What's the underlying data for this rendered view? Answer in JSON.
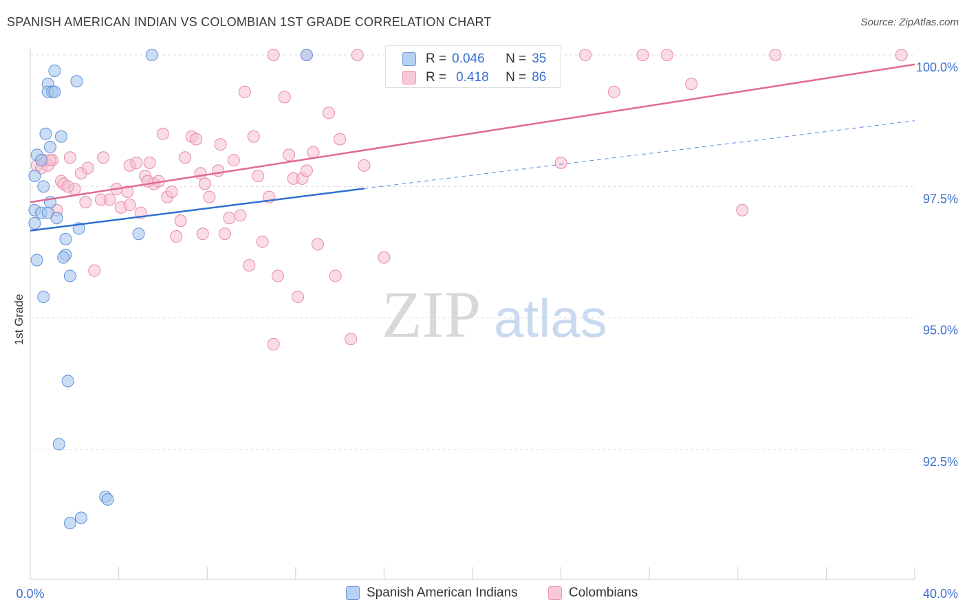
{
  "title": "SPANISH AMERICAN INDIAN VS COLOMBIAN 1ST GRADE CORRELATION CHART",
  "source": "Source: ZipAtlas.com",
  "watermark": {
    "zip": "ZIP",
    "atlas": "atlas"
  },
  "legend_top": {
    "rows": [
      {
        "r_label": "R =",
        "r_value": "0.046",
        "n_label": "N =",
        "n_value": "35"
      },
      {
        "r_label": "R =",
        "r_value": "0.418",
        "n_label": "N =",
        "n_value": "86"
      }
    ]
  },
  "colors": {
    "blue_fill": "#a9c6ef",
    "blue_stroke": "#5b8fd8",
    "blue_line": "#2f6fd3",
    "pink_fill": "#f6bfd0",
    "pink_stroke": "#e889a8",
    "pink_line": "#e06a93",
    "tick_label": "#3a6fcf",
    "grid": "#dcdcdc"
  },
  "chart_data": {
    "type": "scatter",
    "title": "SPANISH AMERICAN INDIAN VS COLOMBIAN 1ST GRADE CORRELATION CHART",
    "xlabel": "",
    "ylabel": "1st Grade",
    "xlim": [
      0,
      40
    ],
    "ylim": [
      90.0,
      100.3
    ],
    "x_tick_labels": [
      "0.0%",
      "40.0%"
    ],
    "y_ticks": [
      92.5,
      95.0,
      97.5,
      100.0
    ],
    "y_tick_labels": [
      "92.5%",
      "95.0%",
      "97.5%",
      "100.0%"
    ],
    "grid": true,
    "legend_position": "bottom",
    "series": [
      {
        "name": "Spanish American Indians",
        "color": "#a9c6ef",
        "R": 0.046,
        "N": 35,
        "trend": {
          "x": [
            0,
            15.1
          ],
          "y": [
            96.66,
            97.46
          ],
          "dashed_to_x": 40,
          "dashed_end_y": 98.75
        },
        "points": [
          [
            0.2,
            97.05
          ],
          [
            0.2,
            97.7
          ],
          [
            0.2,
            96.8
          ],
          [
            0.3,
            98.1
          ],
          [
            0.3,
            96.1
          ],
          [
            0.5,
            98.0
          ],
          [
            0.5,
            97.0
          ],
          [
            0.6,
            97.5
          ],
          [
            0.6,
            95.4
          ],
          [
            0.7,
            98.5
          ],
          [
            0.8,
            97.0
          ],
          [
            0.8,
            99.45
          ],
          [
            0.8,
            99.3
          ],
          [
            0.9,
            98.25
          ],
          [
            0.9,
            97.2
          ],
          [
            1.0,
            99.3
          ],
          [
            1.1,
            99.7
          ],
          [
            1.1,
            99.3
          ],
          [
            1.2,
            96.9
          ],
          [
            1.4,
            98.45
          ],
          [
            1.6,
            96.5
          ],
          [
            1.6,
            96.2
          ],
          [
            1.7,
            93.8
          ],
          [
            1.8,
            95.8
          ],
          [
            1.8,
            91.1
          ],
          [
            2.1,
            99.5
          ],
          [
            2.2,
            96.7
          ],
          [
            2.3,
            91.2
          ],
          [
            1.3,
            92.6
          ],
          [
            3.4,
            91.6
          ],
          [
            3.5,
            91.55
          ],
          [
            4.9,
            96.6
          ],
          [
            5.5,
            100.0
          ],
          [
            12.5,
            100.0
          ],
          [
            1.5,
            96.15
          ]
        ]
      },
      {
        "name": "Colombians",
        "color": "#f6bfd0",
        "R": 0.418,
        "N": 86,
        "trend": {
          "x": [
            0,
            40
          ],
          "y": [
            97.2,
            99.82
          ]
        },
        "points": [
          [
            0.3,
            97.9
          ],
          [
            0.5,
            97.85
          ],
          [
            0.6,
            98.0
          ],
          [
            0.8,
            97.9
          ],
          [
            1.0,
            98.0
          ],
          [
            1.2,
            97.05
          ],
          [
            1.4,
            97.6
          ],
          [
            1.5,
            97.55
          ],
          [
            1.8,
            98.05
          ],
          [
            2.0,
            97.45
          ],
          [
            2.3,
            97.75
          ],
          [
            2.5,
            97.2
          ],
          [
            2.6,
            97.85
          ],
          [
            2.9,
            95.9
          ],
          [
            3.2,
            97.25
          ],
          [
            3.3,
            98.05
          ],
          [
            3.6,
            97.25
          ],
          [
            3.9,
            97.45
          ],
          [
            4.1,
            97.1
          ],
          [
            4.4,
            97.4
          ],
          [
            4.5,
            97.15
          ],
          [
            4.5,
            97.9
          ],
          [
            4.8,
            97.95
          ],
          [
            5.0,
            97.0
          ],
          [
            5.2,
            97.7
          ],
          [
            5.4,
            97.95
          ],
          [
            5.6,
            97.55
          ],
          [
            5.8,
            97.6
          ],
          [
            6.0,
            98.5
          ],
          [
            6.2,
            97.3
          ],
          [
            6.4,
            97.4
          ],
          [
            6.6,
            96.55
          ],
          [
            6.8,
            96.85
          ],
          [
            7.0,
            98.05
          ],
          [
            7.3,
            98.45
          ],
          [
            7.5,
            98.4
          ],
          [
            7.7,
            97.75
          ],
          [
            7.8,
            96.6
          ],
          [
            7.9,
            97.55
          ],
          [
            8.1,
            97.3
          ],
          [
            8.5,
            97.8
          ],
          [
            8.6,
            98.3
          ],
          [
            8.8,
            96.6
          ],
          [
            9.0,
            96.9
          ],
          [
            9.2,
            98.0
          ],
          [
            9.5,
            96.95
          ],
          [
            9.7,
            99.3
          ],
          [
            9.9,
            96.0
          ],
          [
            10.1,
            98.45
          ],
          [
            10.3,
            97.7
          ],
          [
            10.5,
            96.45
          ],
          [
            10.8,
            97.3
          ],
          [
            11.0,
            94.5
          ],
          [
            11.2,
            95.8
          ],
          [
            11.5,
            99.2
          ],
          [
            11.7,
            98.1
          ],
          [
            11.9,
            97.65
          ],
          [
            12.1,
            95.4
          ],
          [
            12.3,
            97.65
          ],
          [
            12.5,
            97.8
          ],
          [
            12.8,
            98.15
          ],
          [
            13.0,
            96.4
          ],
          [
            13.5,
            98.9
          ],
          [
            13.8,
            95.8
          ],
          [
            14.0,
            98.4
          ],
          [
            14.5,
            94.6
          ],
          [
            15.1,
            97.9
          ],
          [
            16.0,
            96.15
          ],
          [
            17.0,
            100.0
          ],
          [
            18.0,
            100.0
          ],
          [
            11.0,
            100.0
          ],
          [
            12.5,
            100.0
          ],
          [
            14.8,
            100.0
          ],
          [
            20.0,
            100.0
          ],
          [
            24.0,
            97.95
          ],
          [
            25.1,
            100.0
          ],
          [
            26.4,
            99.3
          ],
          [
            27.7,
            100.0
          ],
          [
            28.8,
            100.0
          ],
          [
            29.9,
            99.45
          ],
          [
            32.2,
            97.05
          ],
          [
            33.7,
            100.0
          ],
          [
            39.4,
            100.0
          ],
          [
            1.7,
            97.5
          ],
          [
            0.9,
            98.0
          ],
          [
            5.3,
            97.6
          ]
        ]
      }
    ]
  }
}
